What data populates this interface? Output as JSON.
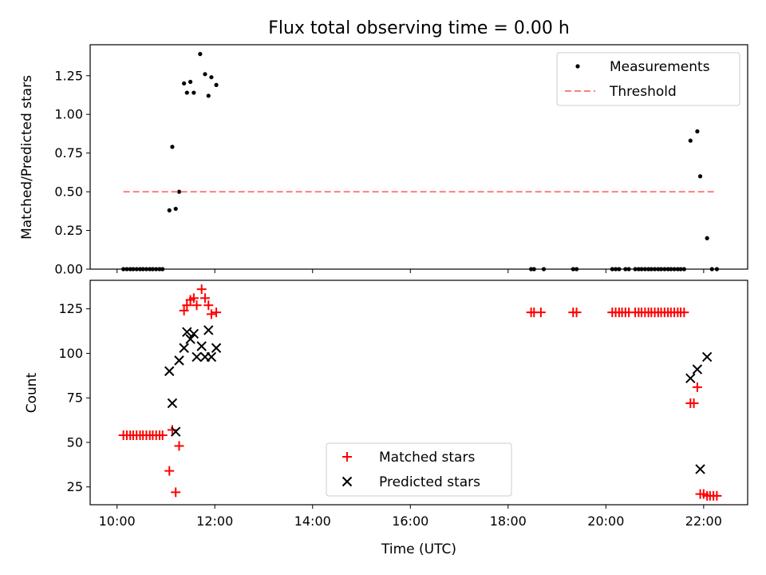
{
  "figure": {
    "title": "Flux total observing time = 0.00 h"
  },
  "colors": {
    "measurements": "#000000",
    "threshold": "#ff7f7f",
    "matched": "#ff0000",
    "predicted": "#000000"
  },
  "chart_data": [
    {
      "type": "scatter",
      "title": "Flux total observing time = 0.00 h",
      "xlabel": "",
      "ylabel": "Matched/Predicted stars",
      "xlim": [
        9.45,
        22.9
      ],
      "ylim": [
        0,
        1.45
      ],
      "xtick_labels_visible": false,
      "yticks": [
        0.0,
        0.25,
        0.5,
        0.75,
        1.0,
        1.25
      ],
      "ytick_labels": [
        "0.00",
        "0.25",
        "0.50",
        "0.75",
        "1.00",
        "1.25"
      ],
      "legend_position": "top-right",
      "series": [
        {
          "name": "Measurements",
          "marker": "dot",
          "color": "#000000",
          "x": [
            10.13,
            10.2,
            10.27,
            10.33,
            10.4,
            10.47,
            10.53,
            10.6,
            10.67,
            10.73,
            10.8,
            10.87,
            10.93,
            11.07,
            11.13,
            11.2,
            11.27,
            11.37,
            11.43,
            11.5,
            11.57,
            11.7,
            11.8,
            11.87,
            11.93,
            12.03,
            18.47,
            18.53,
            18.73,
            19.33,
            19.4,
            20.13,
            20.2,
            20.27,
            20.4,
            20.47,
            20.6,
            20.67,
            20.73,
            20.8,
            20.87,
            20.93,
            21.0,
            21.07,
            21.13,
            21.2,
            21.27,
            21.33,
            21.4,
            21.47,
            21.53,
            21.6,
            21.73,
            21.87,
            21.93,
            22.07,
            22.17,
            22.27
          ],
          "y": [
            0,
            0,
            0,
            0,
            0,
            0,
            0,
            0,
            0,
            0,
            0,
            0,
            0,
            0.38,
            0.79,
            0.39,
            0.5,
            1.2,
            1.14,
            1.21,
            1.14,
            1.39,
            1.26,
            1.12,
            1.24,
            1.19,
            0,
            0,
            0,
            0,
            0,
            0,
            0,
            0,
            0,
            0,
            0,
            0,
            0,
            0,
            0,
            0,
            0,
            0,
            0,
            0,
            0,
            0,
            0,
            0,
            0,
            0,
            0.83,
            0.89,
            0.6,
            0.2,
            0,
            0
          ]
        },
        {
          "name": "Threshold",
          "style": "dashed-line",
          "color": "#ff7f7f",
          "x": [
            10.13,
            22.27
          ],
          "y": [
            0.5,
            0.5
          ]
        }
      ]
    },
    {
      "type": "scatter",
      "title": "",
      "xlabel": "Time (UTC)",
      "ylabel": "Count",
      "xlim": [
        9.45,
        22.9
      ],
      "ylim": [
        15,
        141
      ],
      "xticks": [
        10,
        12,
        14,
        16,
        18,
        20,
        22
      ],
      "xtick_labels": [
        "10:00",
        "12:00",
        "14:00",
        "16:00",
        "18:00",
        "20:00",
        "22:00"
      ],
      "yticks": [
        25,
        50,
        75,
        100,
        125
      ],
      "ytick_labels": [
        "25",
        "50",
        "75",
        "100",
        "125"
      ],
      "legend_position": "bottom-center",
      "series": [
        {
          "name": "Matched stars",
          "marker": "plus",
          "color": "#ff0000",
          "x": [
            10.13,
            10.2,
            10.27,
            10.33,
            10.4,
            10.47,
            10.53,
            10.6,
            10.67,
            10.73,
            10.8,
            10.87,
            10.93,
            11.07,
            11.13,
            11.2,
            11.27,
            11.37,
            11.43,
            11.5,
            11.57,
            11.63,
            11.73,
            11.8,
            11.87,
            11.93,
            12.03,
            18.47,
            18.53,
            18.67,
            19.33,
            19.4,
            20.13,
            20.2,
            20.27,
            20.33,
            20.4,
            20.47,
            20.6,
            20.67,
            20.73,
            20.8,
            20.87,
            20.93,
            21.0,
            21.07,
            21.13,
            21.2,
            21.27,
            21.33,
            21.4,
            21.47,
            21.53,
            21.6,
            21.73,
            21.8,
            21.87,
            21.93,
            22.0,
            22.07,
            22.13,
            22.2,
            22.27
          ],
          "y": [
            54,
            54,
            54,
            54,
            54,
            54,
            54,
            54,
            54,
            54,
            54,
            54,
            54,
            34,
            57,
            22,
            48,
            124,
            127,
            130,
            131,
            127,
            136,
            131,
            127,
            122,
            123,
            123,
            123,
            123,
            123,
            123,
            123,
            123,
            123,
            123,
            123,
            123,
            123,
            123,
            123,
            123,
            123,
            123,
            123,
            123,
            123,
            123,
            123,
            123,
            123,
            123,
            123,
            123,
            72,
            72,
            81,
            21,
            21,
            20,
            20,
            20,
            20
          ]
        },
        {
          "name": "Predicted stars",
          "marker": "x",
          "color": "#000000",
          "x": [
            11.07,
            11.13,
            11.2,
            11.27,
            11.37,
            11.43,
            11.5,
            11.57,
            11.63,
            11.73,
            11.8,
            11.87,
            11.93,
            12.03,
            21.73,
            21.87,
            21.93,
            22.07
          ],
          "y": [
            90,
            72,
            56,
            96,
            103,
            112,
            108,
            111,
            98,
            104,
            98,
            113,
            98,
            103,
            86,
            91,
            35,
            98
          ]
        }
      ]
    }
  ]
}
